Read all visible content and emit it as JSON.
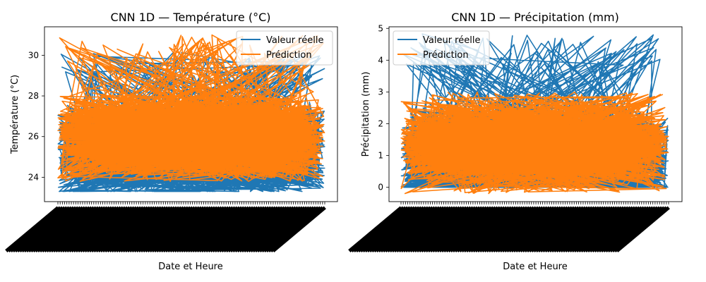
{
  "colors": {
    "actual": "#1f77b4",
    "prediction": "#ff7f0e"
  },
  "legend": {
    "actual_label": "Valeur réelle",
    "prediction_label": "Prédiction",
    "placement": "top-right"
  },
  "chart_data": [
    {
      "type": "line",
      "title": "CNN 1D — Température (°C)",
      "xlabel": "Date et Heure",
      "ylabel": "Température (°C)",
      "ylim": [
        22.8,
        31.4
      ],
      "yticks": [
        24,
        26,
        28,
        30
      ],
      "series": [
        {
          "name": "Valeur réelle",
          "role": "actual",
          "min": 23.3,
          "max": 30.2,
          "center": 25.3,
          "spread": 1.5,
          "n": 2000
        },
        {
          "name": "Prédiction",
          "role": "prediction",
          "min": 23.8,
          "max": 31.0,
          "center": 26.1,
          "spread": 1.4,
          "n": 2000
        }
      ],
      "legend_placement": "top-right",
      "grid": false
    },
    {
      "type": "line",
      "title": "CNN 1D — Précipitation (mm)",
      "xlabel": "Date et Heure",
      "ylabel": "Précipitation (mm)",
      "ylim": [
        -0.45,
        5.05
      ],
      "yticks": [
        0,
        1,
        2,
        3,
        4,
        5
      ],
      "series": [
        {
          "name": "Valeur réelle",
          "role": "actual",
          "min": 0.0,
          "max": 4.9,
          "center": 0.9,
          "spread": 1.0,
          "n": 2000
        },
        {
          "name": "Prédiction",
          "role": "prediction",
          "min": -0.2,
          "max": 3.0,
          "center": 1.3,
          "spread": 0.8,
          "n": 2000
        }
      ],
      "legend_placement": "top-left",
      "grid": false
    }
  ]
}
